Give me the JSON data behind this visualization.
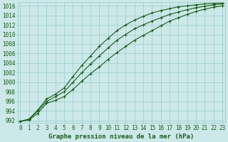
{
  "xlabel": "Graphe pression niveau de la mer (hPa)",
  "xlim": [
    -0.3,
    23.3
  ],
  "ylim": [
    991.5,
    1016.8
  ],
  "yticks": [
    992,
    994,
    996,
    998,
    1000,
    1002,
    1004,
    1006,
    1008,
    1010,
    1012,
    1014,
    1016
  ],
  "xticks": [
    0,
    1,
    2,
    3,
    4,
    5,
    6,
    7,
    8,
    9,
    10,
    11,
    12,
    13,
    14,
    15,
    16,
    17,
    18,
    19,
    20,
    21,
    22,
    23
  ],
  "bg_color": "#cce8e8",
  "grid_color": "#99cccc",
  "line_color": "#1a5c1a",
  "line1": [
    991.8,
    992.1,
    993.5,
    995.6,
    996.2,
    997.0,
    998.5,
    1000.2,
    1001.8,
    1003.2,
    1004.8,
    1006.2,
    1007.5,
    1008.8,
    1009.8,
    1010.8,
    1011.8,
    1012.8,
    1013.5,
    1014.2,
    1014.8,
    1015.3,
    1015.7,
    1016.0
  ],
  "line2": [
    991.8,
    992.2,
    994.0,
    996.0,
    997.0,
    998.0,
    1000.0,
    1002.0,
    1003.8,
    1005.5,
    1007.2,
    1008.8,
    1010.0,
    1011.2,
    1012.0,
    1012.8,
    1013.5,
    1014.2,
    1014.7,
    1015.2,
    1015.6,
    1015.9,
    1016.2,
    1016.4
  ],
  "line3": [
    991.8,
    992.3,
    994.2,
    996.5,
    997.5,
    998.8,
    1001.2,
    1003.5,
    1005.5,
    1007.5,
    1009.2,
    1010.8,
    1012.0,
    1013.0,
    1013.8,
    1014.5,
    1015.0,
    1015.4,
    1015.8,
    1016.0,
    1016.2,
    1016.4,
    1016.5,
    1016.6
  ],
  "marker": "+",
  "markersize": 3.5,
  "linewidth": 0.8,
  "tick_fontsize": 5.5,
  "label_fontsize": 6.5
}
